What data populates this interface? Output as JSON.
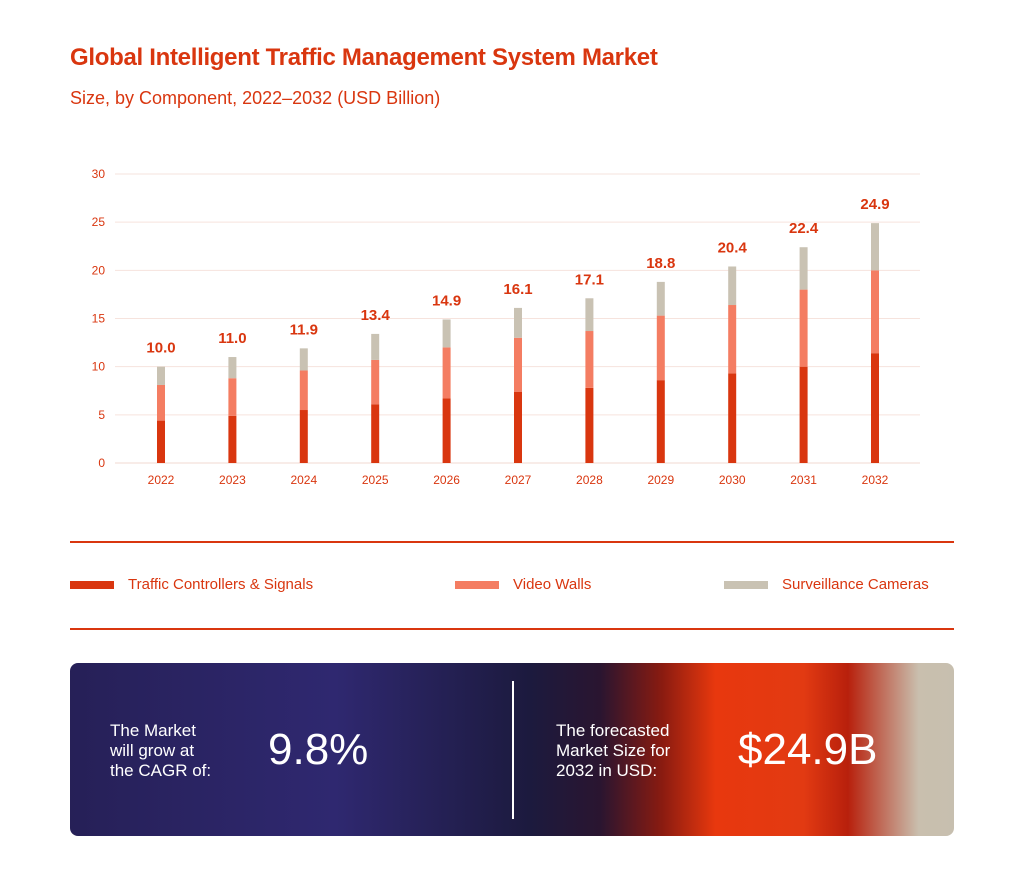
{
  "header": {
    "title": "Global Intelligent Traffic Management System Market",
    "subtitle": "Size, by Component, 2022–2032 (USD Billion)"
  },
  "chart_data": {
    "type": "stacked-bar",
    "title": "Global Intelligent Traffic Management System Market",
    "subtitle": "Size, by Component, 2022–2032 (USD Billion)",
    "xlabel": "",
    "ylabel": "",
    "ylim": [
      0,
      30
    ],
    "yticks": [
      0,
      5,
      10,
      15,
      20,
      25,
      30
    ],
    "grid": true,
    "legend_position": "bottom",
    "categories": [
      "2022",
      "2023",
      "2024",
      "2025",
      "2026",
      "2027",
      "2028",
      "2029",
      "2030",
      "2031",
      "2032"
    ],
    "series": [
      {
        "name": "Traffic Controllers & Signals",
        "color": "#d9360f",
        "values": [
          4.4,
          4.9,
          5.5,
          6.1,
          6.7,
          7.4,
          7.8,
          8.6,
          9.3,
          10.0,
          11.4
        ]
      },
      {
        "name": "Video Walls",
        "color": "#f47d62",
        "values": [
          3.7,
          3.9,
          4.1,
          4.6,
          5.3,
          5.6,
          5.9,
          6.7,
          7.1,
          8.0,
          8.6
        ]
      },
      {
        "name": "Surveillance Cameras",
        "color": "#c9c2b3",
        "values": [
          1.9,
          2.2,
          2.3,
          2.7,
          2.9,
          3.1,
          3.4,
          3.5,
          4.0,
          4.4,
          4.9
        ]
      }
    ],
    "totals": [
      "10.0",
      "11.0",
      "11.9",
      "13.4",
      "14.9",
      "16.1",
      "17.1",
      "18.8",
      "20.4",
      "22.4",
      "24.9"
    ]
  },
  "legend": [
    {
      "label": "Traffic Controllers & Signals",
      "color": "#d9360f"
    },
    {
      "label": "Video Walls",
      "color": "#f47d62"
    },
    {
      "label": "Surveillance Cameras",
      "color": "#c9c2b3"
    }
  ],
  "banner": {
    "cagr_text_1": "The Market",
    "cagr_text_2": "will grow at",
    "cagr_text_3": "the CAGR of:",
    "cagr_value": "9.8%",
    "forecast_text_1": "The forecasted",
    "forecast_text_2": "Market Size for",
    "forecast_text_3": "2032 in USD:",
    "forecast_value": "$24.9B"
  }
}
